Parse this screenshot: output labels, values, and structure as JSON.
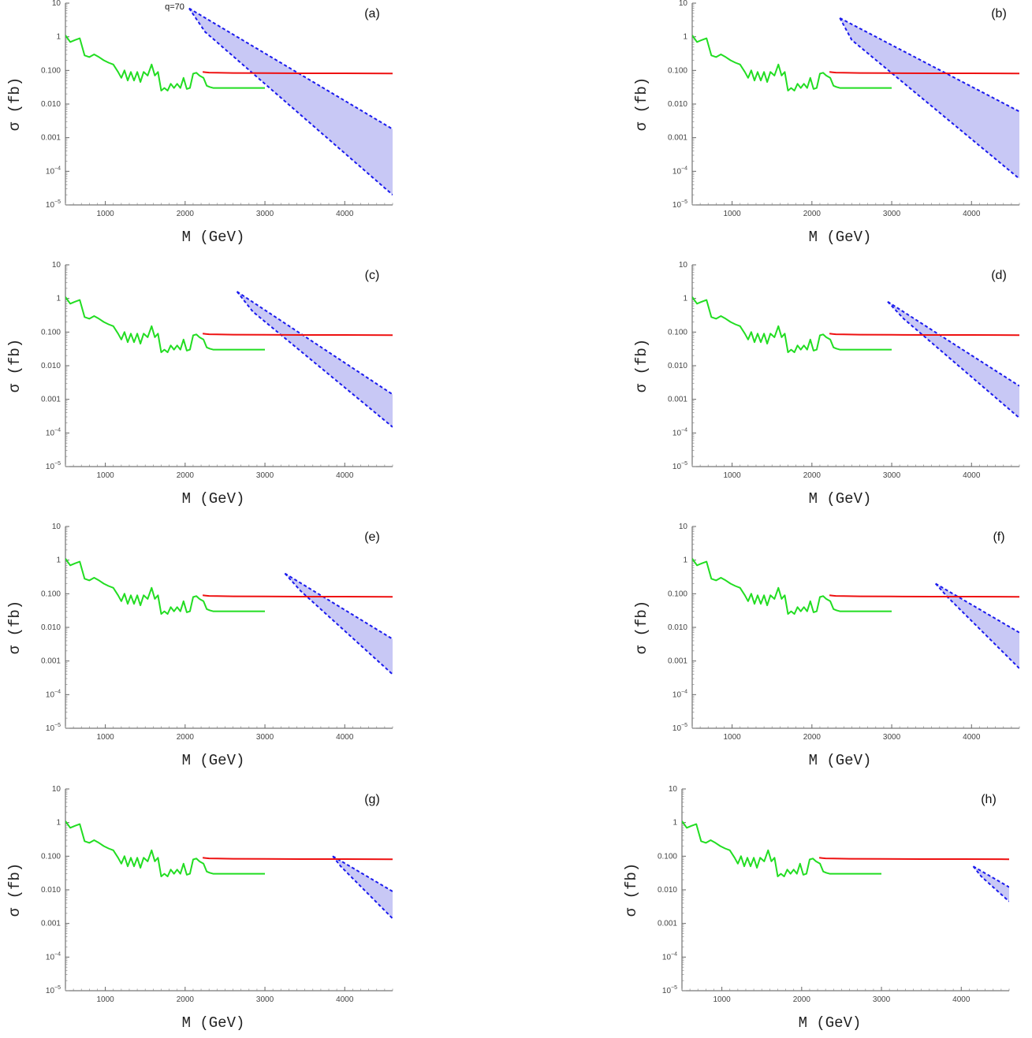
{
  "chart_data": {
    "type": "line",
    "layout": "4x2 grid of panels",
    "xlabel": "M  (GeV)",
    "ylabel": "σ  (fb)",
    "xlim": [
      500,
      4600
    ],
    "ylim": [
      1e-05,
      10
    ],
    "yscale": "log",
    "grid": false,
    "legend": "none",
    "x_ticks": [
      1000,
      2000,
      3000,
      4000
    ],
    "y_ticks": [
      {
        "value": 10,
        "label": "10"
      },
      {
        "value": 1,
        "label": "1"
      },
      {
        "value": 0.1,
        "label": "0.100"
      },
      {
        "value": 0.01,
        "label": "0.010"
      },
      {
        "value": 0.001,
        "label": "0.001"
      },
      {
        "value": 0.0001,
        "label": "10",
        "sup": "−4"
      },
      {
        "value": 1e-05,
        "label": "10",
        "sup": "−5"
      }
    ],
    "annotation": {
      "panel": "(a)",
      "text": "q=70"
    },
    "colors": {
      "limit_low_mass": "#22dd22",
      "limit_high_mass": "#ee1111",
      "band_edge": "#1a1aee",
      "band_fill": "#c8c8f5"
    },
    "series": {
      "limit_low_mass": {
        "x": [
          500,
          560,
          620,
          680,
          740,
          800,
          860,
          920,
          980,
          1040,
          1100,
          1160,
          1200,
          1240,
          1280,
          1320,
          1360,
          1400,
          1440,
          1480,
          1530,
          1580,
          1620,
          1660,
          1700,
          1740,
          1780,
          1820,
          1860,
          1900,
          1940,
          1980,
          2020,
          2060,
          2100,
          2140,
          2180,
          2230,
          2270,
          2310,
          2350,
          2400,
          2450,
          2500,
          2600,
          2800,
          3000
        ],
        "y": [
          1.1,
          0.7,
          0.8,
          0.9,
          0.28,
          0.25,
          0.3,
          0.25,
          0.2,
          0.17,
          0.15,
          0.09,
          0.06,
          0.1,
          0.05,
          0.09,
          0.05,
          0.09,
          0.045,
          0.09,
          0.07,
          0.15,
          0.07,
          0.09,
          0.025,
          0.03,
          0.025,
          0.04,
          0.03,
          0.04,
          0.03,
          0.06,
          0.028,
          0.03,
          0.08,
          0.085,
          0.07,
          0.06,
          0.035,
          0.032,
          0.03,
          0.03,
          0.03,
          0.03,
          0.03,
          0.03,
          0.03
        ]
      },
      "limit_high_mass": {
        "x": [
          2220,
          2260,
          2300,
          2400,
          2600,
          3000,
          3500,
          4000,
          4600
        ],
        "y": [
          0.09,
          0.088,
          0.086,
          0.085,
          0.084,
          0.083,
          0.082,
          0.082,
          0.081
        ]
      }
    },
    "panels": [
      {
        "label": "(a)",
        "band": {
          "upper": [
            [
              2050,
              7
            ],
            [
              4600,
              0.0018
            ]
          ],
          "lower": [
            [
              2050,
              7
            ],
            [
              2250,
              1.4
            ],
            [
              4600,
              2e-05
            ]
          ]
        }
      },
      {
        "label": "(b)",
        "band": {
          "upper": [
            [
              2350,
              3.6
            ],
            [
              4600,
              0.006
            ]
          ],
          "lower": [
            [
              2350,
              3.6
            ],
            [
              2500,
              0.8
            ],
            [
              4600,
              6e-05
            ]
          ]
        }
      },
      {
        "label": "(c)",
        "band": {
          "upper": [
            [
              2650,
              1.6
            ],
            [
              4600,
              0.0014
            ]
          ],
          "lower": [
            [
              2650,
              1.6
            ],
            [
              2850,
              0.4
            ],
            [
              4600,
              0.00015
            ]
          ]
        }
      },
      {
        "label": "(d)",
        "band": {
          "upper": [
            [
              2950,
              0.8
            ],
            [
              4600,
              0.0025
            ]
          ],
          "lower": [
            [
              2950,
              0.8
            ],
            [
              3150,
              0.25
            ],
            [
              4600,
              0.00028
            ]
          ]
        }
      },
      {
        "label": "(e)",
        "band": {
          "upper": [
            [
              3250,
              0.4
            ],
            [
              4600,
              0.0045
            ]
          ],
          "lower": [
            [
              3250,
              0.4
            ],
            [
              3450,
              0.12
            ],
            [
              4600,
              0.0004
            ]
          ]
        }
      },
      {
        "label": "(f)",
        "band": {
          "upper": [
            [
              3550,
              0.2
            ],
            [
              4600,
              0.007
            ]
          ],
          "lower": [
            [
              3550,
              0.2
            ],
            [
              3700,
              0.08
            ],
            [
              4600,
              0.0006
            ]
          ]
        }
      },
      {
        "label": "(g)",
        "band": {
          "upper": [
            [
              3850,
              0.1
            ],
            [
              4600,
              0.009
            ]
          ],
          "lower": [
            [
              3850,
              0.1
            ],
            [
              3950,
              0.05
            ],
            [
              4600,
              0.0014
            ]
          ]
        }
      },
      {
        "label": "(h)",
        "band": {
          "upper": [
            [
              4150,
              0.05
            ],
            [
              4600,
              0.012
            ]
          ],
          "lower": [
            [
              4150,
              0.05
            ],
            [
              4250,
              0.025
            ],
            [
              4600,
              0.0045
            ]
          ]
        }
      }
    ]
  }
}
